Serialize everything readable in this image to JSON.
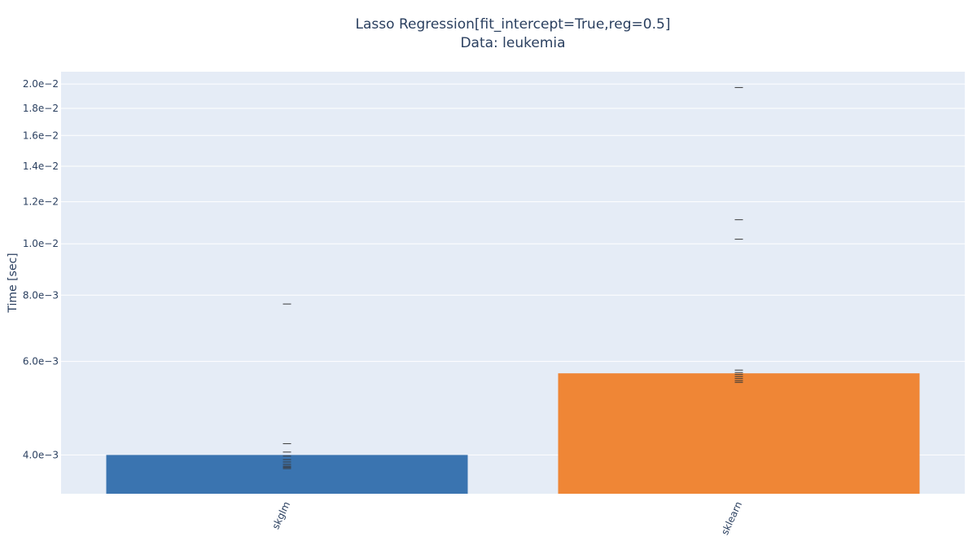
{
  "chart_data": {
    "type": "bar",
    "title": "Lasso Regression[fit_intercept=True,reg=0.5]",
    "subtitle": "Data: leukemia",
    "xlabel": "",
    "ylabel": "Time [sec]",
    "y_scale": "log",
    "ylim": [
      0.00338,
      0.0211
    ],
    "grid": true,
    "background_color": "#e5ecf6",
    "categories": [
      "skglm",
      "sklearn"
    ],
    "values": [
      0.004,
      0.0057
    ],
    "bar_colors": [
      "#3a74b0",
      "#ef8636"
    ],
    "samples": [
      [
        0.0077,
        0.0042,
        0.00405,
        0.00398,
        0.00392,
        0.00388,
        0.00384,
        0.00381,
        0.00379,
        0.00377
      ],
      [
        0.0197,
        0.0111,
        0.0102,
        0.00578,
        0.00572,
        0.00567,
        0.00562,
        0.00557,
        0.00552,
        0.00548
      ]
    ],
    "y_ticks": [
      {
        "value": 0.004,
        "label": "4.0e−3"
      },
      {
        "value": 0.006,
        "label": "6.0e−3"
      },
      {
        "value": 0.008,
        "label": "8.0e−3"
      },
      {
        "value": 0.01,
        "label": "1.0e−2"
      },
      {
        "value": 0.012,
        "label": "1.2e−2"
      },
      {
        "value": 0.014,
        "label": "1.4e−2"
      },
      {
        "value": 0.016,
        "label": "1.6e−2"
      },
      {
        "value": 0.018,
        "label": "1.8e−2"
      },
      {
        "value": 0.02,
        "label": "2.0e−2"
      }
    ]
  }
}
